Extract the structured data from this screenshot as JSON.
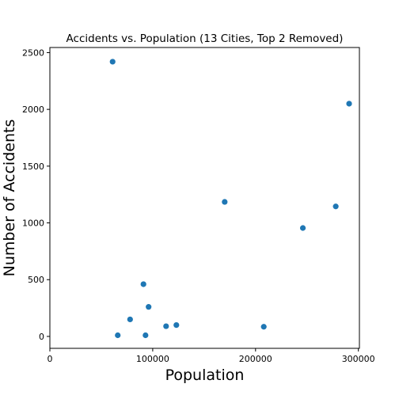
{
  "chart_data": {
    "type": "scatter",
    "title": "Accidents vs. Population (13 Cities, Top 2 Removed)",
    "xlabel": "Population",
    "ylabel": "Number of Accidents",
    "xlim": [
      0,
      301000
    ],
    "ylim": [
      -105,
      2545
    ],
    "xticks": [
      0,
      100000,
      200000,
      300000
    ],
    "yticks": [
      0,
      500,
      1000,
      1500,
      2000,
      2500
    ],
    "xtick_labels": [
      "0",
      "100000",
      "200000",
      "300000"
    ],
    "ytick_labels": [
      "0",
      "500",
      "1000",
      "1500",
      "2000",
      "2500"
    ],
    "grid": false,
    "legend": "none",
    "marker_color": "#1f77b4",
    "points": [
      {
        "x": 61000,
        "y": 2420
      },
      {
        "x": 66000,
        "y": 10
      },
      {
        "x": 78000,
        "y": 150
      },
      {
        "x": 91000,
        "y": 460
      },
      {
        "x": 93000,
        "y": 10
      },
      {
        "x": 96000,
        "y": 260
      },
      {
        "x": 113000,
        "y": 90
      },
      {
        "x": 123000,
        "y": 100
      },
      {
        "x": 170000,
        "y": 1185
      },
      {
        "x": 208000,
        "y": 85
      },
      {
        "x": 246000,
        "y": 955
      },
      {
        "x": 278000,
        "y": 1145
      },
      {
        "x": 291000,
        "y": 2050
      }
    ]
  }
}
